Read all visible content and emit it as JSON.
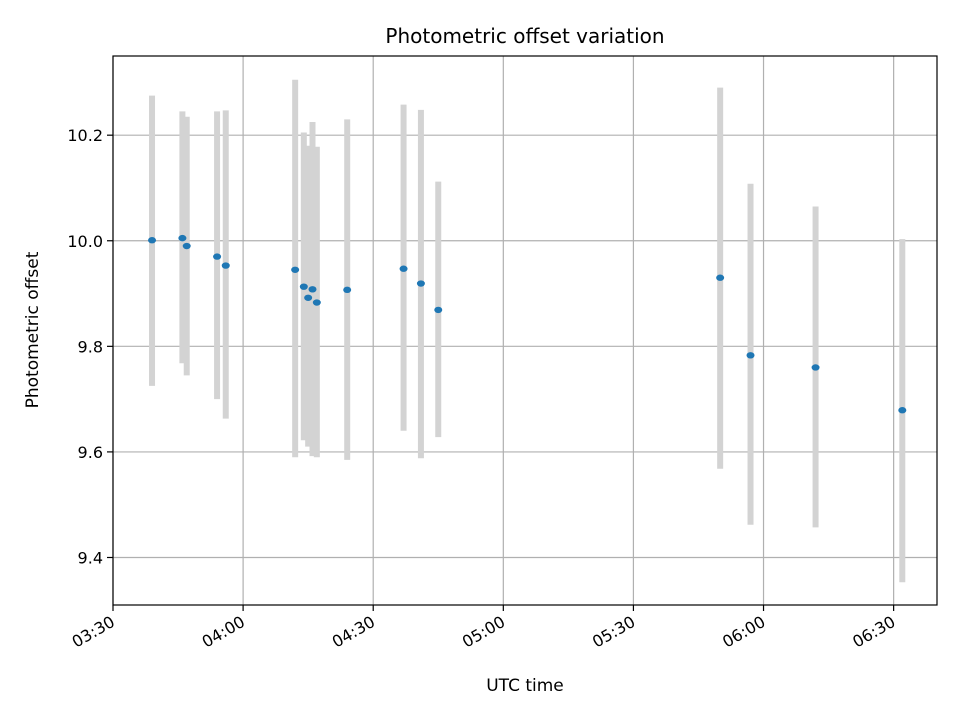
{
  "chart_data": {
    "type": "scatter",
    "title": "Photometric offset variation",
    "xlabel": "UTC time",
    "ylabel": "Photometric offset",
    "x_ticks": [
      "03:30",
      "04:00",
      "04:30",
      "05:00",
      "05:30",
      "06:00",
      "06:30"
    ],
    "y_ticks": [
      9.4,
      9.6,
      9.8,
      10.0,
      10.2
    ],
    "xlim": [
      "03:30",
      "06:40"
    ],
    "ylim": [
      9.31,
      10.35
    ],
    "grid": true,
    "colors": {
      "point": "#1f77b4",
      "errorbar": "#d3d3d3",
      "grid": "#b0b0b0"
    },
    "points": [
      {
        "x": "03:39",
        "y": 10.001,
        "y_low": 9.725,
        "y_high": 10.275
      },
      {
        "x": "03:46",
        "y": 10.005,
        "y_low": 9.768,
        "y_high": 10.245
      },
      {
        "x": "03:47",
        "y": 9.99,
        "y_low": 9.745,
        "y_high": 10.235
      },
      {
        "x": "03:54",
        "y": 9.97,
        "y_low": 9.7,
        "y_high": 10.245
      },
      {
        "x": "03:56",
        "y": 9.953,
        "y_low": 9.663,
        "y_high": 10.247
      },
      {
        "x": "04:12",
        "y": 9.945,
        "y_low": 9.59,
        "y_high": 10.305
      },
      {
        "x": "04:14",
        "y": 9.913,
        "y_low": 9.622,
        "y_high": 10.205
      },
      {
        "x": "04:15",
        "y": 9.892,
        "y_low": 9.61,
        "y_high": 10.18
      },
      {
        "x": "04:16",
        "y": 9.908,
        "y_low": 9.592,
        "y_high": 10.225
      },
      {
        "x": "04:17",
        "y": 9.883,
        "y_low": 9.59,
        "y_high": 10.178
      },
      {
        "x": "04:24",
        "y": 9.907,
        "y_low": 9.585,
        "y_high": 10.23
      },
      {
        "x": "04:37",
        "y": 9.947,
        "y_low": 9.64,
        "y_high": 10.258
      },
      {
        "x": "04:41",
        "y": 9.919,
        "y_low": 9.588,
        "y_high": 10.248
      },
      {
        "x": "04:45",
        "y": 9.869,
        "y_low": 9.628,
        "y_high": 10.112
      },
      {
        "x": "05:50",
        "y": 9.93,
        "y_low": 9.568,
        "y_high": 10.29
      },
      {
        "x": "05:57",
        "y": 9.783,
        "y_low": 9.462,
        "y_high": 10.108
      },
      {
        "x": "06:12",
        "y": 9.76,
        "y_low": 9.457,
        "y_high": 10.065
      },
      {
        "x": "06:32",
        "y": 9.679,
        "y_low": 9.353,
        "y_high": 10.003
      }
    ]
  }
}
